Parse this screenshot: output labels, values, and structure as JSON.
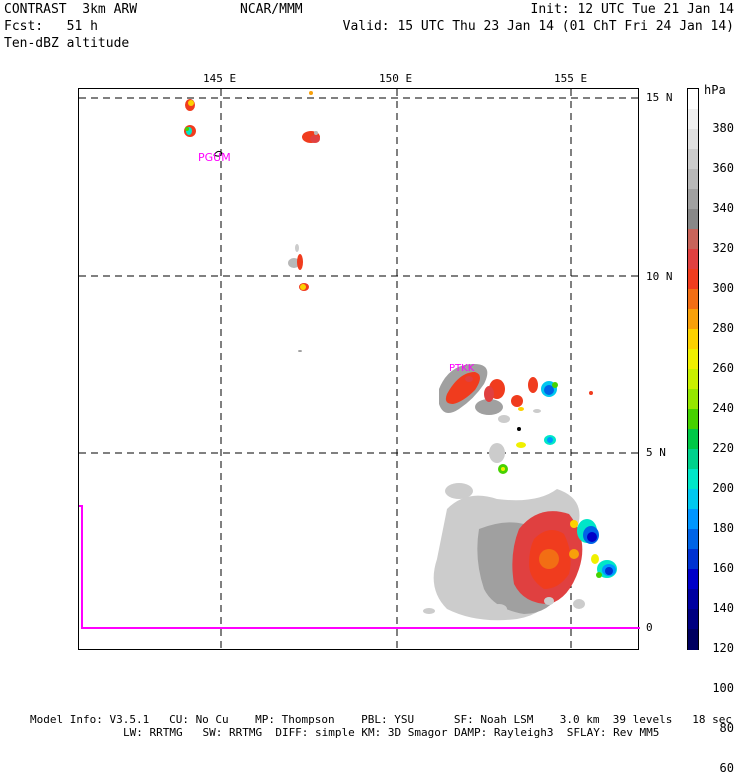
{
  "header": {
    "model": "CONTRAST  3km ARW",
    "fcst": "Fcst:   51 h",
    "field": "Ten-dBZ altitude",
    "center": "NCAR/MMM",
    "init": "Init: 12 UTC Tue 21 Jan 14",
    "valid": "Valid: 15 UTC Thu 23 Jan 14 (01 ChT Fri 24 Jan 14)"
  },
  "map": {
    "lon_labels": [
      "145 E",
      "150 E",
      "155 E"
    ],
    "lat_labels": [
      "15 N",
      "10 N",
      "5 N",
      "0"
    ],
    "place_labels": [
      "PGUM",
      "PTKK"
    ],
    "lon_range": [
      141.0,
      157.0
    ],
    "lat_range": [
      -0.6,
      15.2
    ],
    "grid": true,
    "contour_color": "#ff00ff"
  },
  "colorbar": {
    "unit": "hPa",
    "labels": [
      "380",
      "360",
      "340",
      "320",
      "300",
      "280",
      "260",
      "240",
      "220",
      "200",
      "180",
      "160",
      "140",
      "120",
      "100",
      "80",
      "60"
    ],
    "colors": [
      "#ffffff",
      "#f0f0f0",
      "#e0e0e0",
      "#cccccc",
      "#b8b8b8",
      "#a0a0a0",
      "#888888",
      "#c8645a",
      "#e04040",
      "#f03c1e",
      "#f26e14",
      "#f8a00a",
      "#fcd200",
      "#f0f000",
      "#c8f000",
      "#96e600",
      "#46d200",
      "#00c846",
      "#00d28c",
      "#00e6c8",
      "#00c8f0",
      "#0096ff",
      "#0064e6",
      "#0032d2",
      "#0000c8",
      "#0000a0",
      "#000080",
      "#000060"
    ]
  },
  "footer": {
    "line1": "Model Info: V3.5.1   CU: No Cu    MP: Thompson    PBL: YSU      SF: Noah LSM    3.0 km  39 levels   18 sec",
    "line2": "LW: RRTMG   SW: RRTMG  DIFF: simple KM: 3D Smagor DAMP: Rayleigh3  SFLAY: Rev MM5"
  }
}
